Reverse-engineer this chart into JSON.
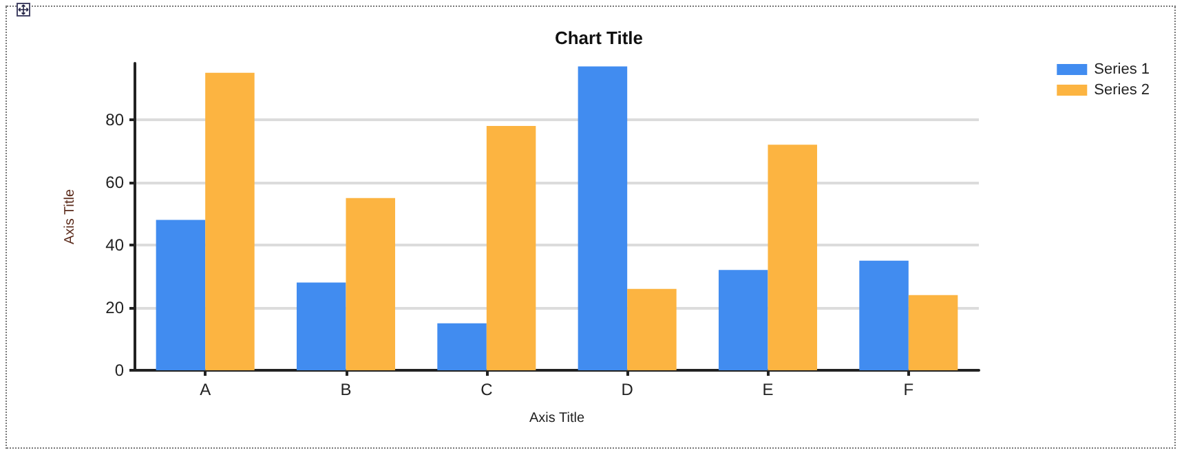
{
  "chart_data": {
    "type": "bar",
    "title": "Chart Title",
    "xlabel": "Axis Title",
    "ylabel": "Axis Title",
    "categories": [
      "A",
      "B",
      "C",
      "D",
      "E",
      "F"
    ],
    "series": [
      {
        "name": "Series 1",
        "color": "#418cf0",
        "values": [
          48,
          28,
          15,
          97,
          32,
          35
        ]
      },
      {
        "name": "Series 2",
        "color": "#fcb441",
        "values": [
          95,
          55,
          78,
          26,
          72,
          24
        ]
      }
    ],
    "ylim": [
      0,
      98
    ],
    "yticks": [
      0,
      20,
      40,
      60,
      80
    ],
    "grid": "y",
    "legend": "top right"
  }
}
